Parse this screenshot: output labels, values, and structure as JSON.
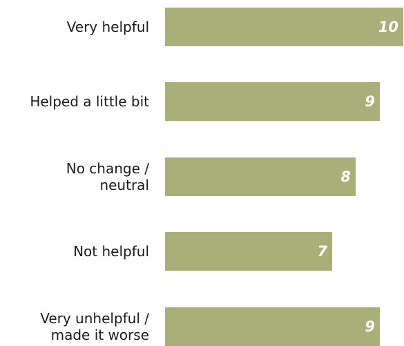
{
  "chart_data": {
    "type": "bar",
    "orientation": "horizontal",
    "categories": [
      "Very helpful",
      "Helped a little bit",
      "No change /\nneutral",
      "Not helpful",
      "Very unhelpful /\nmade it worse"
    ],
    "values": [
      10,
      9,
      8,
      7,
      9
    ],
    "title": "",
    "xlabel": "",
    "ylabel": "",
    "xlim": [
      0,
      10
    ],
    "grid": false,
    "bar_color": "#a8af78",
    "value_label_color": "#ffffff",
    "category_label_color": "#1a1a1a"
  }
}
